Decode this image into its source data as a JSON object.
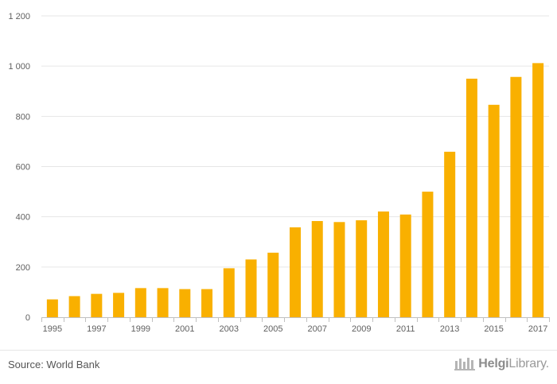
{
  "chart_data": {
    "type": "bar",
    "categories": [
      "1995",
      "1996",
      "1997",
      "1998",
      "1999",
      "2000",
      "2001",
      "2002",
      "2003",
      "2004",
      "2005",
      "2006",
      "2007",
      "2008",
      "2009",
      "2010",
      "2011",
      "2012",
      "2013",
      "2014",
      "2015",
      "2016",
      "2017"
    ],
    "x_tick_labels": [
      "1995",
      "1997",
      "1999",
      "2001",
      "2003",
      "2005",
      "2007",
      "2009",
      "2011",
      "2013",
      "2015",
      "2017"
    ],
    "values": [
      71,
      84,
      93,
      97,
      116,
      116,
      112,
      112,
      195,
      230,
      257,
      358,
      383,
      379,
      386,
      421,
      409,
      500,
      659,
      950,
      846,
      957,
      1012
    ],
    "y_ticks": [
      0,
      200,
      400,
      600,
      800,
      1000,
      1200
    ],
    "y_tick_labels": [
      "0",
      "200",
      "400",
      "600",
      "800",
      "1 000",
      "1 200"
    ],
    "ylim": [
      0,
      1200
    ],
    "grid": true,
    "colors": {
      "bar": "#f9b000",
      "grid": "#e6e6e6",
      "axis": "#c0c0c0"
    }
  },
  "footer": {
    "source": "Source: World Bank",
    "brand_bold": "Helgi",
    "brand_rest": "Library."
  }
}
